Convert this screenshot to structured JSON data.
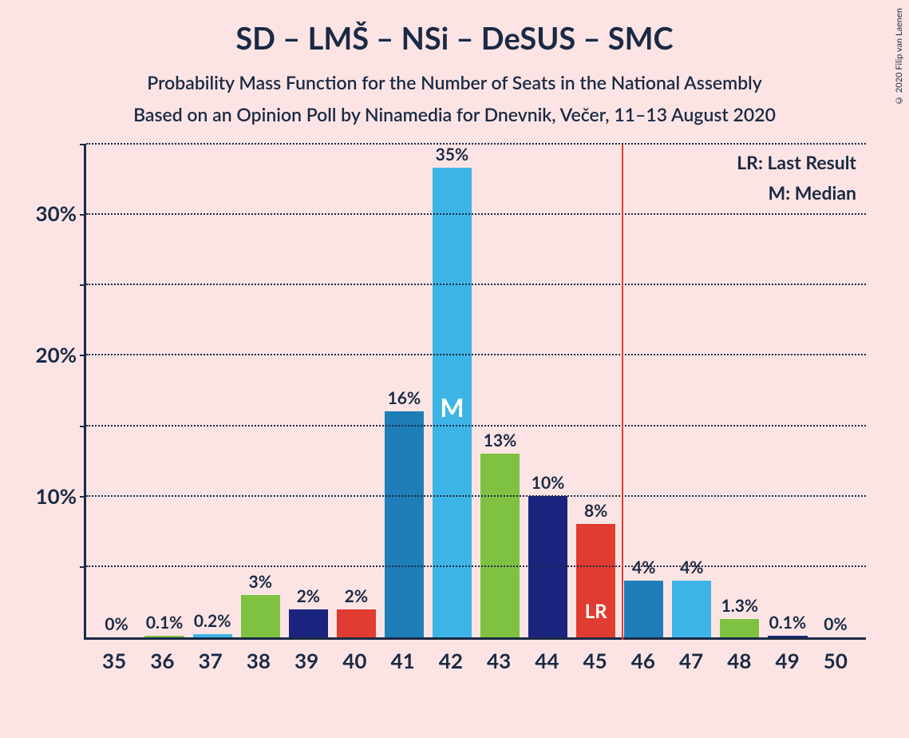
{
  "title": "SD – LMŠ – NSi – DeSUS – SMC",
  "subtitle1": "Probability Mass Function for the Number of Seats in the National Assembly",
  "subtitle2": "Based on an Opinion Poll by Ninamedia for Dnevnik, Večer, 11–13 August 2020",
  "copyright": "© 2020 Filip van Laenen",
  "legend": {
    "lr": "LR: Last Result",
    "m": "M: Median"
  },
  "chart": {
    "type": "bar",
    "background_color": "#fce4e4",
    "axis_color": "#1a2a44",
    "grid_color": "#1a2a44",
    "grid_style": "dotted",
    "ylim_max": 35,
    "y_ticks": [
      5,
      10,
      15,
      20,
      25,
      30,
      35
    ],
    "y_labels": [
      {
        "value": 10,
        "text": "10%"
      },
      {
        "value": 20,
        "text": "20%"
      },
      {
        "value": 30,
        "text": "30%"
      }
    ],
    "lr_line_x": 45.5,
    "lr_line_color": "#e03c31",
    "bars": [
      {
        "x": "35",
        "value": 0,
        "label": "0%",
        "color": "#1e7fb8"
      },
      {
        "x": "36",
        "value": 0.1,
        "label": "0.1%",
        "color": "#7fc241"
      },
      {
        "x": "37",
        "value": 0.2,
        "label": "0.2%",
        "color": "#3cb4e5"
      },
      {
        "x": "38",
        "value": 3,
        "label": "3%",
        "color": "#7fc241"
      },
      {
        "x": "39",
        "value": 2,
        "label": "2%",
        "color": "#1a237e"
      },
      {
        "x": "40",
        "value": 2,
        "label": "2%",
        "color": "#e03c31"
      },
      {
        "x": "41",
        "value": 16,
        "label": "16%",
        "color": "#1e7fb8"
      },
      {
        "x": "42",
        "value": 35,
        "label": "35%",
        "color": "#3cb4e5",
        "inner": "M"
      },
      {
        "x": "43",
        "value": 13,
        "label": "13%",
        "color": "#7fc241"
      },
      {
        "x": "44",
        "value": 10,
        "label": "10%",
        "color": "#1a237e"
      },
      {
        "x": "45",
        "value": 8,
        "label": "8%",
        "color": "#e03c31",
        "inner": "LR"
      },
      {
        "x": "46",
        "value": 4,
        "label": "4%",
        "color": "#1e7fb8"
      },
      {
        "x": "47",
        "value": 4,
        "label": "4%",
        "color": "#3cb4e5"
      },
      {
        "x": "48",
        "value": 1.3,
        "label": "1.3%",
        "color": "#7fc241"
      },
      {
        "x": "49",
        "value": 0.1,
        "label": "0.1%",
        "color": "#1a237e"
      },
      {
        "x": "50",
        "value": 0,
        "label": "0%",
        "color": "#e03c31"
      }
    ]
  }
}
